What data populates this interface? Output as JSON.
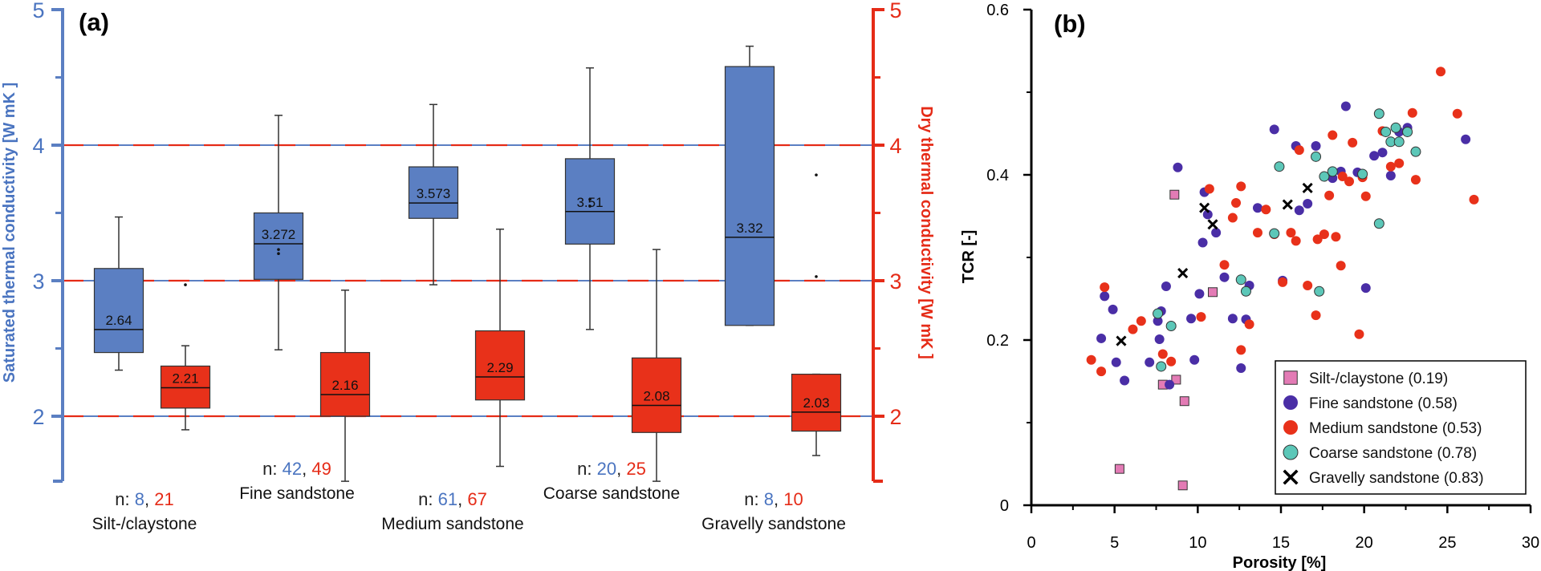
{
  "colors": {
    "saturated": "#5b7fc2",
    "saturated_fill": "#5b7fc2",
    "saturated_label": "#4a74c0",
    "dry": "#e52b17",
    "dry_fill": "#e8311a",
    "silt": "#e37bb5",
    "fine": "#4a2ea6",
    "medium": "#e8311a",
    "coarse": "#5cc7b8",
    "gravelly": "#000000"
  },
  "chart_data": [
    {
      "panel_label": "(a)",
      "type": "boxplot",
      "ylabel_left": "Saturated  thermal conductivity [W mK  ]",
      "ylabel_right": "Dry  thermal conductivity [W mK  ]",
      "ylim": [
        1.5,
        5
      ],
      "y_ticks": [
        "2",
        "3",
        "4",
        "5"
      ],
      "reference_lines": [
        2,
        3,
        4
      ],
      "n_prefix": "n: ",
      "n_separator": ", ",
      "groups": [
        {
          "name": "Silt-/claystone",
          "saturated": {
            "whisker_low": 2.34,
            "q1": 2.47,
            "median": 2.64,
            "q3": 3.09,
            "whisker_high": 3.47,
            "median_label": "2.64",
            "n": "8",
            "outliers": []
          },
          "dry": {
            "whisker_low": 1.9,
            "q1": 2.06,
            "median": 2.21,
            "q3": 2.37,
            "whisker_high": 2.52,
            "median_label": "2.21",
            "n": "21",
            "outliers": [
              2.97
            ]
          }
        },
        {
          "name": "Fine sandstone",
          "saturated": {
            "whisker_low": 2.49,
            "q1": 3.01,
            "median": 3.272,
            "q3": 3.5,
            "whisker_high": 4.22,
            "median_label": "3.272",
            "n": "42",
            "outliers": [
              3.2,
              3.23
            ]
          },
          "dry": {
            "whisker_low": 1.52,
            "q1": 2.0,
            "median": 2.16,
            "q3": 2.47,
            "whisker_high": 2.93,
            "median_label": "2.16",
            "n": "49",
            "outliers": []
          }
        },
        {
          "name": "Medium sandstone",
          "saturated": {
            "whisker_low": 2.97,
            "q1": 3.46,
            "median": 3.573,
            "q3": 3.84,
            "whisker_high": 4.3,
            "median_label": "3.573",
            "n": "61",
            "outliers": []
          },
          "dry": {
            "whisker_low": 1.63,
            "q1": 2.12,
            "median": 2.29,
            "q3": 2.63,
            "whisker_high": 3.38,
            "median_label": "2.29",
            "n": "67",
            "outliers": []
          }
        },
        {
          "name": "Coarse sandstone",
          "saturated": {
            "whisker_low": 2.64,
            "q1": 3.27,
            "median": 3.51,
            "q3": 3.9,
            "whisker_high": 4.57,
            "median_label": "3.51",
            "n": "20",
            "outliers": [
              3.55,
              3.6
            ]
          },
          "dry": {
            "whisker_low": 1.52,
            "q1": 1.88,
            "median": 2.08,
            "q3": 2.43,
            "whisker_high": 3.23,
            "median_label": "2.08",
            "n": "25",
            "outliers": []
          }
        },
        {
          "name": "Gravelly sandstone",
          "saturated": {
            "whisker_low": 2.67,
            "q1": 2.67,
            "median": 3.32,
            "q3": 4.58,
            "whisker_high": 4.73,
            "median_label": "3.32",
            "n": "8",
            "outliers": []
          },
          "dry": {
            "whisker_low": 1.71,
            "q1": 1.89,
            "median": 2.03,
            "q3": 2.31,
            "whisker_high": 2.31,
            "median_label": "2.03",
            "n": "10",
            "outliers": [
              3.78,
              3.03
            ]
          }
        }
      ]
    },
    {
      "panel_label": "(b)",
      "type": "scatter",
      "xlabel": "Porosity [%]",
      "ylabel": "TCR [-]",
      "xlim": [
        0,
        30
      ],
      "ylim": [
        0,
        0.6
      ],
      "x_ticks": [
        "0",
        "5",
        "10",
        "15",
        "20",
        "25",
        "30"
      ],
      "y_ticks": [
        "0",
        "0.2",
        "0.4",
        "0.6"
      ],
      "legend_position": "bottom-right",
      "series": [
        {
          "name": "Silt-/claystone (0.19)",
          "marker": "square",
          "points": [
            [
              5.3,
              0.044
            ],
            [
              9.1,
              0.024
            ],
            [
              8.6,
              0.376
            ],
            [
              8.7,
              0.152
            ],
            [
              9.2,
              0.126
            ],
            [
              7.9,
              0.146
            ],
            [
              10.9,
              0.258
            ]
          ]
        },
        {
          "name": "Fine sandstone (0.58)",
          "marker": "circle",
          "points": [
            [
              4.2,
              0.202
            ],
            [
              4.4,
              0.253
            ],
            [
              4.9,
              0.237
            ],
            [
              5.1,
              0.173
            ],
            [
              5.6,
              0.151
            ],
            [
              7.1,
              0.173
            ],
            [
              7.6,
              0.223
            ],
            [
              7.8,
              0.235
            ],
            [
              7.7,
              0.201
            ],
            [
              8.1,
              0.265
            ],
            [
              8.3,
              0.146
            ],
            [
              8.8,
              0.409
            ],
            [
              9.6,
              0.226
            ],
            [
              9.8,
              0.176
            ],
            [
              10.1,
              0.256
            ],
            [
              10.3,
              0.318
            ],
            [
              10.4,
              0.379
            ],
            [
              10.6,
              0.352
            ],
            [
              11.1,
              0.33
            ],
            [
              11.6,
              0.276
            ],
            [
              12.1,
              0.226
            ],
            [
              12.6,
              0.166
            ],
            [
              12.9,
              0.225
            ],
            [
              13.1,
              0.266
            ],
            [
              13.6,
              0.36
            ],
            [
              14.6,
              0.455
            ],
            [
              15.1,
              0.272
            ],
            [
              15.9,
              0.435
            ],
            [
              16.1,
              0.357
            ],
            [
              16.6,
              0.365
            ],
            [
              17.1,
              0.435
            ],
            [
              18.1,
              0.396
            ],
            [
              18.6,
              0.404
            ],
            [
              18.9,
              0.483
            ],
            [
              19.6,
              0.403
            ],
            [
              20.1,
              0.263
            ],
            [
              20.6,
              0.423
            ],
            [
              21.1,
              0.427
            ],
            [
              21.6,
              0.399
            ],
            [
              22.1,
              0.452
            ],
            [
              22.6,
              0.457
            ],
            [
              26.1,
              0.443
            ]
          ]
        },
        {
          "name": "Medium sandstone (0.53)",
          "marker": "circle",
          "points": [
            [
              3.6,
              0.176
            ],
            [
              4.2,
              0.162
            ],
            [
              4.4,
              0.264
            ],
            [
              6.1,
              0.213
            ],
            [
              6.6,
              0.223
            ],
            [
              7.9,
              0.183
            ],
            [
              8.4,
              0.174
            ],
            [
              10.2,
              0.228
            ],
            [
              10.7,
              0.383
            ],
            [
              11.6,
              0.291
            ],
            [
              12.1,
              0.348
            ],
            [
              12.3,
              0.366
            ],
            [
              12.6,
              0.188
            ],
            [
              12.6,
              0.386
            ],
            [
              13.1,
              0.219
            ],
            [
              13.6,
              0.33
            ],
            [
              14.1,
              0.358
            ],
            [
              14.6,
              0.328
            ],
            [
              15.1,
              0.27
            ],
            [
              15.6,
              0.33
            ],
            [
              15.9,
              0.32
            ],
            [
              16.1,
              0.43
            ],
            [
              16.6,
              0.266
            ],
            [
              17.1,
              0.23
            ],
            [
              17.2,
              0.322
            ],
            [
              17.6,
              0.328
            ],
            [
              17.9,
              0.375
            ],
            [
              18.1,
              0.448
            ],
            [
              18.3,
              0.325
            ],
            [
              18.6,
              0.29
            ],
            [
              18.7,
              0.398
            ],
            [
              19.1,
              0.392
            ],
            [
              19.3,
              0.439
            ],
            [
              19.7,
              0.207
            ],
            [
              19.9,
              0.397
            ],
            [
              20.1,
              0.374
            ],
            [
              21.1,
              0.453
            ],
            [
              21.6,
              0.41
            ],
            [
              22.1,
              0.414
            ],
            [
              22.9,
              0.475
            ],
            [
              23.1,
              0.394
            ],
            [
              24.6,
              0.525
            ],
            [
              25.6,
              0.474
            ],
            [
              26.6,
              0.37
            ]
          ]
        },
        {
          "name": "Coarse sandstone (0.78)",
          "marker": "circle",
          "points": [
            [
              7.6,
              0.232
            ],
            [
              7.8,
              0.168
            ],
            [
              8.4,
              0.217
            ],
            [
              12.6,
              0.273
            ],
            [
              12.9,
              0.259
            ],
            [
              14.6,
              0.329
            ],
            [
              14.9,
              0.41
            ],
            [
              17.1,
              0.422
            ],
            [
              17.3,
              0.259
            ],
            [
              17.6,
              0.398
            ],
            [
              18.1,
              0.404
            ],
            [
              19.9,
              0.401
            ],
            [
              20.9,
              0.474
            ],
            [
              20.9,
              0.341
            ],
            [
              21.3,
              0.452
            ],
            [
              21.6,
              0.44
            ],
            [
              21.9,
              0.457
            ],
            [
              22.1,
              0.44
            ],
            [
              22.6,
              0.452
            ],
            [
              23.1,
              0.428
            ]
          ]
        },
        {
          "name": "Gravelly sandstone (0.83)",
          "marker": "x",
          "points": [
            [
              5.4,
              0.199
            ],
            [
              9.1,
              0.281
            ],
            [
              10.4,
              0.36
            ],
            [
              10.9,
              0.34
            ],
            [
              15.4,
              0.364
            ],
            [
              16.6,
              0.384
            ]
          ]
        }
      ]
    }
  ]
}
